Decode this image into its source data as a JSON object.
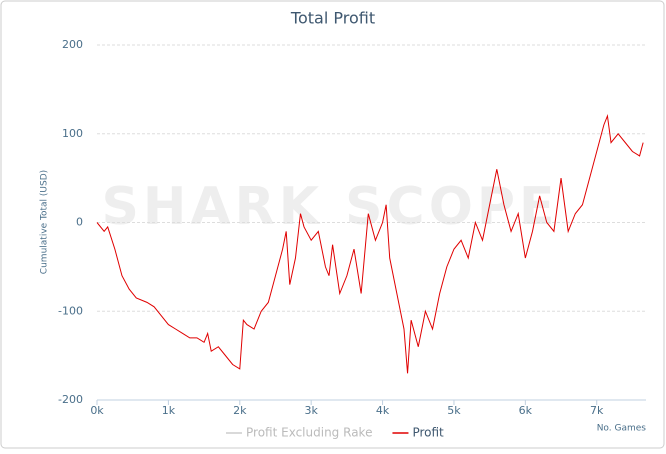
{
  "chart_data": {
    "type": "line",
    "title": "Total Profit",
    "y_label": "Cumulative Total (USD)",
    "x_label": "No. Games",
    "watermark": "SHARK SCOPE",
    "x": [
      0,
      100,
      150,
      250,
      350,
      450,
      550,
      700,
      800,
      900,
      1000,
      1100,
      1200,
      1300,
      1400,
      1500,
      1550,
      1600,
      1700,
      1800,
      1900,
      2000,
      2050,
      2100,
      2200,
      2300,
      2400,
      2500,
      2600,
      2650,
      2700,
      2780,
      2850,
      2900,
      3000,
      3100,
      3200,
      3250,
      3300,
      3400,
      3500,
      3600,
      3700,
      3800,
      3900,
      4000,
      4050,
      4100,
      4200,
      4300,
      4350,
      4400,
      4500,
      4600,
      4700,
      4800,
      4900,
      5000,
      5100,
      5200,
      5300,
      5400,
      5500,
      5600,
      5700,
      5800,
      5900,
      6000,
      6100,
      6200,
      6300,
      6400,
      6500,
      6600,
      6700,
      6800,
      6900,
      7000,
      7100,
      7150,
      7200,
      7300,
      7400,
      7500,
      7600,
      7650
    ],
    "series": [
      {
        "name": "Profit Excluding Rake",
        "color": "#cccccc",
        "visible": false,
        "values": [
          null,
          null,
          null,
          null,
          null,
          null,
          null,
          null,
          null,
          null,
          null,
          null,
          null,
          null,
          null,
          null,
          null,
          null,
          null,
          null,
          null,
          null,
          null,
          null,
          null,
          null,
          null,
          null,
          null,
          null,
          null,
          null,
          null,
          null,
          null,
          null,
          null,
          null,
          null,
          null,
          null,
          null,
          null,
          null,
          null,
          null,
          null,
          null,
          null,
          null,
          null,
          null,
          null,
          null,
          null,
          null,
          null,
          null,
          null,
          null,
          null,
          null,
          null,
          null,
          null,
          null,
          null,
          null,
          null,
          null,
          null,
          null,
          null,
          null,
          null,
          null,
          null,
          null,
          null,
          null,
          null,
          null,
          null,
          null,
          null,
          null
        ]
      },
      {
        "name": "Profit",
        "color": "#e00000",
        "visible": true,
        "values": [
          0,
          -10,
          -5,
          -30,
          -60,
          -75,
          -85,
          -90,
          -95,
          -105,
          -115,
          -120,
          -125,
          -130,
          -130,
          -135,
          -125,
          -145,
          -140,
          -150,
          -160,
          -165,
          -110,
          -115,
          -120,
          -100,
          -90,
          -60,
          -30,
          -10,
          -70,
          -40,
          10,
          -5,
          -20,
          -10,
          -50,
          -60,
          -25,
          -80,
          -60,
          -30,
          -80,
          10,
          -20,
          0,
          20,
          -40,
          -80,
          -120,
          -170,
          -110,
          -140,
          -100,
          -120,
          -80,
          -50,
          -30,
          -20,
          -40,
          0,
          -20,
          20,
          60,
          20,
          -10,
          10,
          -40,
          -10,
          30,
          0,
          -10,
          50,
          -10,
          10,
          20,
          50,
          80,
          110,
          120,
          90,
          100,
          90,
          80,
          75,
          90
        ]
      }
    ],
    "xlim": [
      0,
      7690
    ],
    "xticks": [
      {
        "value": 0,
        "label": "0k"
      },
      {
        "value": 1000,
        "label": "1k"
      },
      {
        "value": 2000,
        "label": "2k"
      },
      {
        "value": 3000,
        "label": "3k"
      },
      {
        "value": 4000,
        "label": "4k"
      },
      {
        "value": 5000,
        "label": "5k"
      },
      {
        "value": 6000,
        "label": "6k"
      },
      {
        "value": 7000,
        "label": "7k"
      }
    ],
    "ylim": [
      -200,
      200
    ],
    "yticks": [
      -200,
      -100,
      0,
      100,
      200
    ],
    "grid": true,
    "legend": "bottom"
  }
}
